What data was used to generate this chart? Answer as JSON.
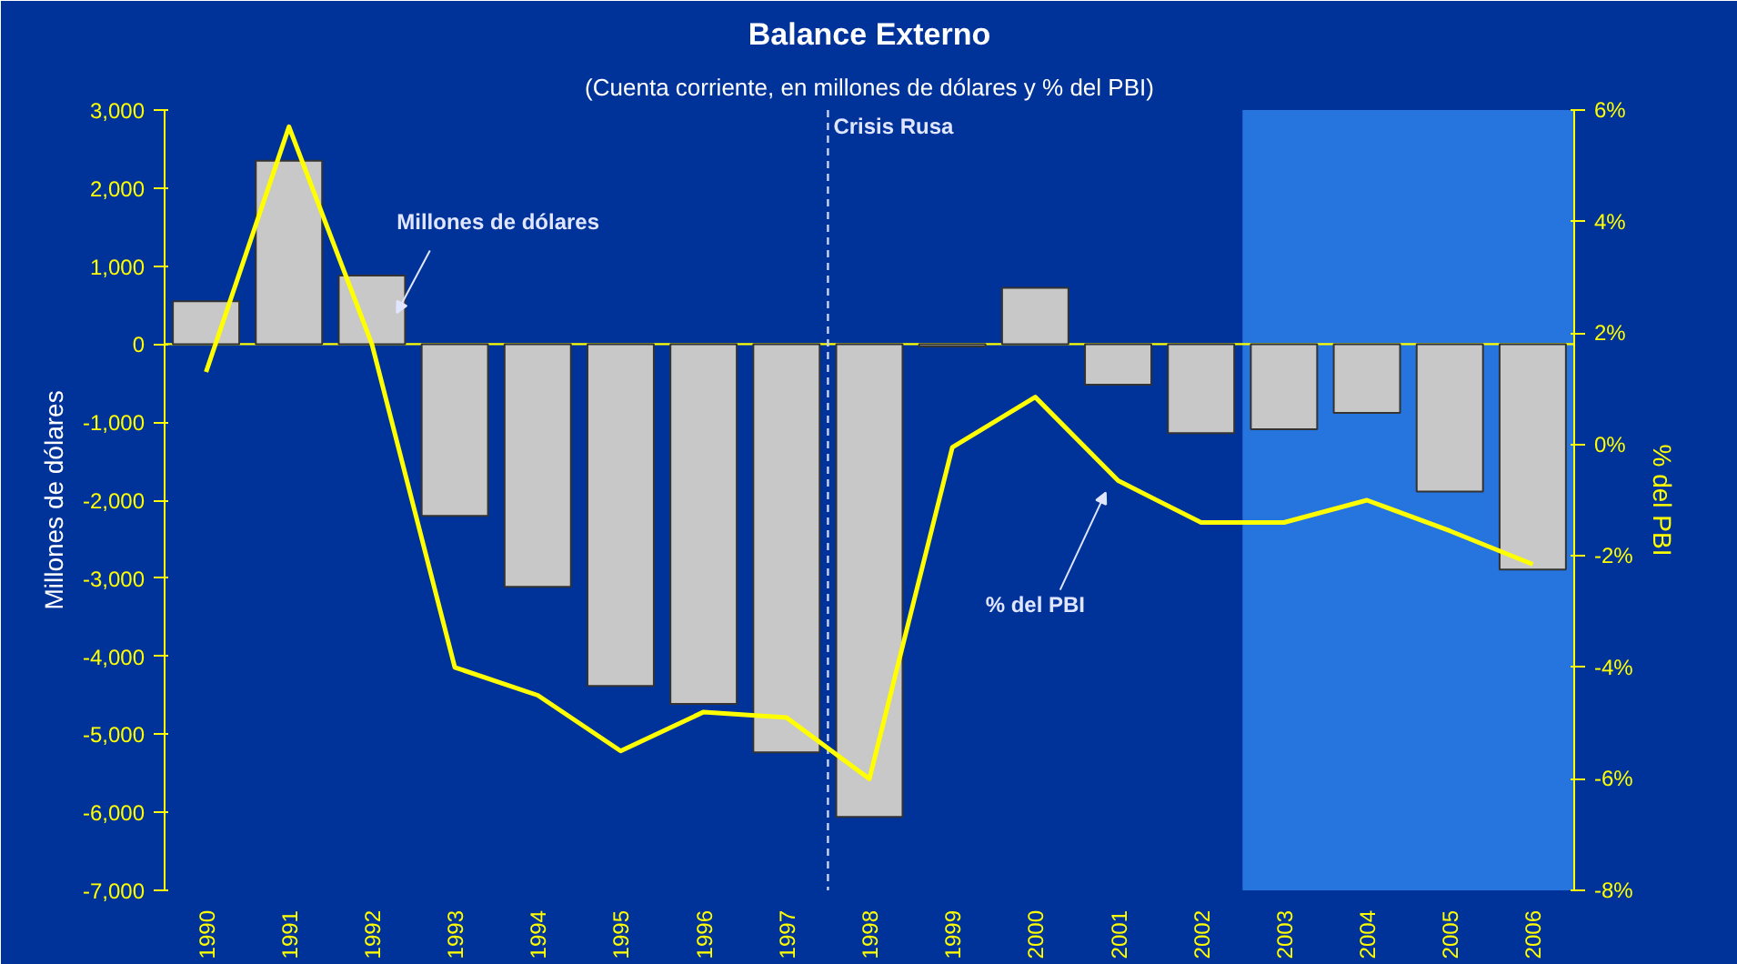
{
  "chart_data": {
    "type": "bar",
    "title": "Balance Externo",
    "subtitle": "(Cuenta corriente, en millones de dólares y % del PBI)",
    "ylabel": "Millones de dólares",
    "y2label": "% del PBI",
    "x": [
      1990,
      1991,
      1992,
      1993,
      1994,
      1995,
      1996,
      1997,
      1998,
      1999,
      2000,
      2001,
      2002,
      2003,
      2004,
      2005,
      2006
    ],
    "xlim": [
      1989.5,
      2006.5
    ],
    "xticks": [
      1990,
      1991,
      1992,
      1993,
      1994,
      1995,
      1996,
      1997,
      1998,
      1999,
      2000,
      2001,
      2002,
      2003,
      2004,
      2005,
      2006
    ],
    "ylim": [
      -7000,
      3000
    ],
    "yticks": [
      {
        "value": -7000,
        "label": "-7,000"
      },
      {
        "value": -6000,
        "label": "-6,000"
      },
      {
        "value": -5000,
        "label": "-5,000"
      },
      {
        "value": -4000,
        "label": "-4,000"
      },
      {
        "value": -3000,
        "label": "-3,000"
      },
      {
        "value": -2000,
        "label": "-2,000"
      },
      {
        "value": -1000,
        "label": "-1,000"
      },
      0,
      {
        "value": 1000,
        "label": "1,000"
      },
      {
        "value": 2000,
        "label": "2,000"
      },
      {
        "value": 3000,
        "label": "3,000"
      }
    ],
    "y2lim": [
      -8,
      6
    ],
    "y2ticks": [
      {
        "value": -8,
        "label": "-8%"
      },
      {
        "value": -6,
        "label": "-6%"
      },
      {
        "value": -4,
        "label": "-4%"
      },
      {
        "value": -2,
        "label": "-2%"
      },
      {
        "value": 0,
        "label": "0%"
      },
      {
        "value": 2,
        "label": "2%"
      },
      {
        "value": 4,
        "label": "4%"
      },
      {
        "value": 6,
        "label": "6%"
      }
    ],
    "series": [
      {
        "color": "#c8c8c8",
        "values": [
          550,
          2350,
          880,
          -2200,
          -3110,
          -4380,
          -4610,
          -5230,
          -6060,
          -30,
          720,
          -520,
          -1140,
          -1090,
          -880,
          -1890,
          -2890
        ]
      },
      {
        "type": "line",
        "axis": "y2",
        "color": "#ffff00",
        "values": [
          1.3,
          5.7,
          1.8,
          -4.0,
          -4.5,
          -5.5,
          -4.8,
          -4.9,
          -6.0,
          -0.05,
          0.85,
          -0.65,
          -1.4,
          -1.4,
          -1.0,
          -1.55,
          -2.15
        ]
      }
    ],
    "ref_lines": [
      {
        "axis": "y",
        "value": 0,
        "color": "#ffff00",
        "line_style": "solid"
      },
      {
        "axis": "x",
        "value": 1997.5,
        "label": "Crisis Rusa",
        "color": "#c8d4f0",
        "line_style": "dashed"
      }
    ],
    "bands": [
      {
        "axis": "x",
        "from": 2002.5,
        "to": 2006.5,
        "color": "#2a7be4"
      }
    ],
    "annotations": [
      "Millones de dólares",
      "% del PBI"
    ],
    "grid": false
  }
}
